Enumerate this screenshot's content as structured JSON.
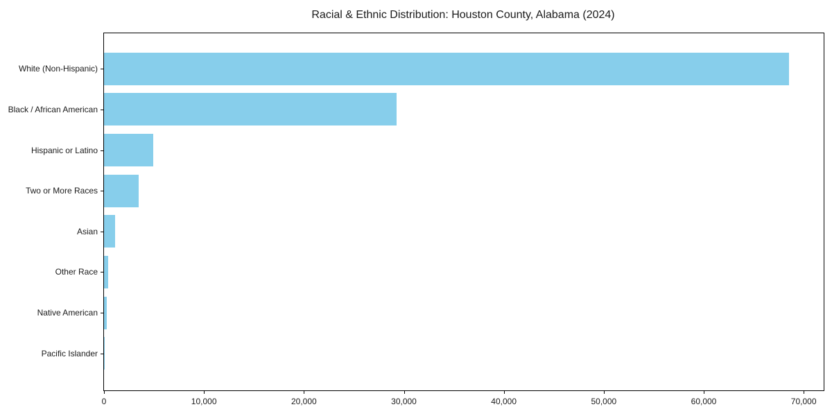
{
  "chart_data": {
    "type": "bar",
    "orientation": "horizontal",
    "title": "Racial & Ethnic Distribution: Houston County, Alabama (2024)",
    "categories": [
      "White (Non-Hispanic)",
      "Black / African American",
      "Hispanic or Latino",
      "Two or More Races",
      "Asian",
      "Other Race",
      "Native American",
      "Pacific Islander"
    ],
    "values": [
      68500,
      29300,
      4900,
      3500,
      1100,
      420,
      300,
      40
    ],
    "xlabel": "",
    "ylabel": "",
    "xlim": [
      0,
      72000
    ],
    "x_ticks": [
      0,
      10000,
      20000,
      30000,
      40000,
      50000,
      60000,
      70000
    ],
    "x_tick_labels": [
      "0",
      "10,000",
      "20,000",
      "30,000",
      "40,000",
      "50,000",
      "60,000",
      "70,000"
    ],
    "bar_color": "#87CEEB",
    "spine_color": "#000000",
    "text_color": "#1a1a1a",
    "background_color": "#ffffff",
    "grid": false,
    "legend": null
  }
}
